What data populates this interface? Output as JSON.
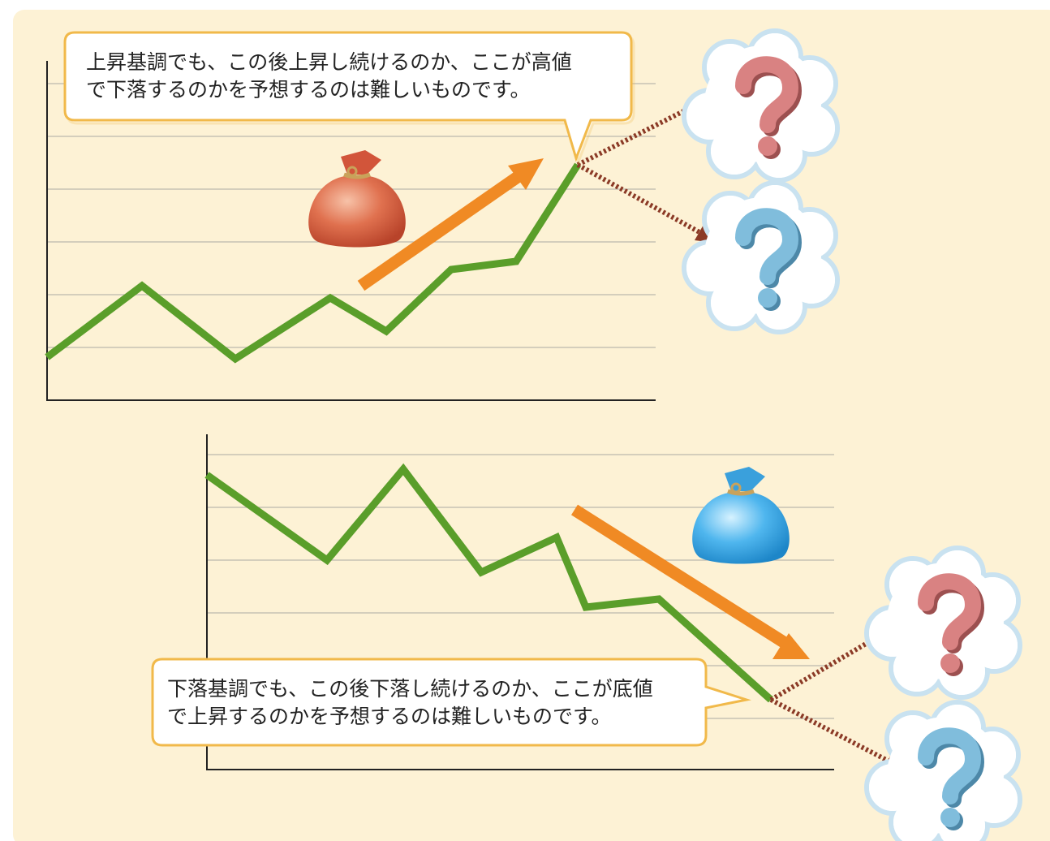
{
  "callouts": [
    {
      "lines": [
        "上昇基調でも、この後上昇し続けるのか、ここが高値",
        "で下落するのかを予想するのは難しいものです。"
      ]
    },
    {
      "lines": [
        "下落基調でも、この後下落し続けるのか、ここが底値",
        "で上昇するのかを予想するのは難しいものです。"
      ]
    }
  ]
}
